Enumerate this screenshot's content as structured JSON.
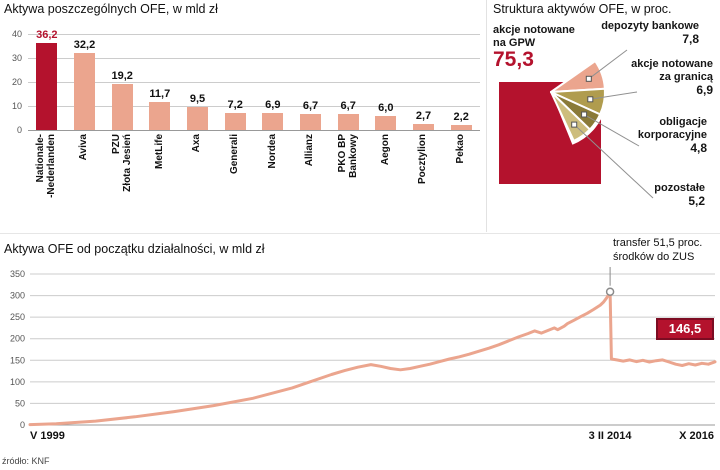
{
  "page": {
    "source": "źródło: KNF"
  },
  "colors": {
    "highlight": "#b4122d",
    "series": "#eba58e",
    "grid": "#cccccc",
    "axis": "#999999",
    "text": "#111111"
  },
  "chart_data": [
    {
      "type": "bar",
      "title": "Aktywa poszczególnych OFE, w mld zł",
      "categories": [
        "Nationale--Nederlanden",
        "Aviva",
        "PZU Złota Jesień",
        "MetLife",
        "Axa",
        "Generali",
        "Nordea",
        "Allianz",
        "PKO BP Bankowy",
        "Aegon",
        "Pocztylion",
        "Pekao"
      ],
      "category_lines": [
        [
          "Nationale-",
          "-Nederlanden"
        ],
        [
          "Aviva"
        ],
        [
          "PZU",
          "Złota Jesień"
        ],
        [
          "MetLife"
        ],
        [
          "Axa"
        ],
        [
          "Generali"
        ],
        [
          "Nordea"
        ],
        [
          "Allianz"
        ],
        [
          "PKO BP",
          "Bankowy"
        ],
        [
          "Aegon"
        ],
        [
          "Pocztylion"
        ],
        [
          "Pekao"
        ]
      ],
      "values": [
        36.2,
        32.2,
        19.2,
        11.7,
        9.5,
        7.2,
        6.9,
        6.7,
        6.7,
        6.0,
        2.7,
        2.2
      ],
      "value_labels": [
        "36,2",
        "32,2",
        "19,2",
        "11,7",
        "9,5",
        "7,2",
        "6,9",
        "6,7",
        "6,7",
        "6,0",
        "2,7",
        "2,2"
      ],
      "highlight_index": 0,
      "ylim": [
        0,
        40
      ],
      "yticks": [
        0,
        10,
        20,
        30,
        40
      ],
      "grid": true,
      "unit": "mld zł"
    },
    {
      "type": "pie",
      "title": "Struktura aktywów OFE, w proc.",
      "slices": [
        {
          "label_lines": [
            "akcje notowane",
            "na GPW"
          ],
          "value": 75.3,
          "value_label": "75,3",
          "color": "#b4122d"
        },
        {
          "label_lines": [
            "depozyty bankowe"
          ],
          "value": 7.8,
          "value_label": "7,8",
          "color": "#eba58e"
        },
        {
          "label_lines": [
            "akcje notowane",
            "za granicą"
          ],
          "value": 6.9,
          "value_label": "6,9",
          "color": "#b09c4e"
        },
        {
          "label_lines": [
            "obligacje",
            "korporacyjne"
          ],
          "value": 4.8,
          "value_label": "4,8",
          "color": "#8a7a38"
        },
        {
          "label_lines": [
            "pozostałe"
          ],
          "value": 5.2,
          "value_label": "5,2",
          "color": "#cdbd7d"
        }
      ]
    },
    {
      "type": "line",
      "title": "Aktywa OFE od początku działalności, w mld zł",
      "annotation": {
        "text_line1": "transfer 51,5 proc.",
        "text_line2": "środków do ZUS"
      },
      "end_value": 146.5,
      "end_value_label": "146,5",
      "x_axis_start_label": "V 1999",
      "x_axis_event_label": "3 II 2014",
      "x_axis_end_label": "X 2016",
      "ylim": [
        0,
        350
      ],
      "yticks": [
        0,
        50,
        100,
        150,
        200,
        250,
        300,
        350
      ],
      "x_total_months": 209,
      "event_month": 177,
      "peak_value": 309,
      "points": [
        [
          0,
          1
        ],
        [
          8,
          3
        ],
        [
          20,
          9
        ],
        [
          32,
          19
        ],
        [
          44,
          31
        ],
        [
          56,
          45
        ],
        [
          68,
          62
        ],
        [
          80,
          86
        ],
        [
          92,
          117
        ],
        [
          96,
          126
        ],
        [
          100,
          134
        ],
        [
          104,
          140
        ],
        [
          107,
          136
        ],
        [
          110,
          131
        ],
        [
          113,
          128
        ],
        [
          116,
          131
        ],
        [
          119,
          136
        ],
        [
          122,
          141
        ],
        [
          125,
          147
        ],
        [
          128,
          153
        ],
        [
          131,
          158
        ],
        [
          134,
          164
        ],
        [
          137,
          171
        ],
        [
          140,
          178
        ],
        [
          143,
          186
        ],
        [
          146,
          195
        ],
        [
          149,
          204
        ],
        [
          152,
          212
        ],
        [
          154,
          218
        ],
        [
          156,
          213
        ],
        [
          158,
          219
        ],
        [
          160,
          225
        ],
        [
          161,
          221
        ],
        [
          163,
          229
        ],
        [
          164,
          235
        ],
        [
          166,
          243
        ],
        [
          168,
          251
        ],
        [
          170,
          259
        ],
        [
          172,
          268
        ],
        [
          174,
          278
        ],
        [
          175,
          285
        ],
        [
          176,
          295
        ],
        [
          177,
          309
        ],
        [
          177.4,
          153
        ],
        [
          179,
          151
        ],
        [
          181,
          148
        ],
        [
          183,
          151
        ],
        [
          185,
          147
        ],
        [
          187,
          150
        ],
        [
          189,
          146
        ],
        [
          191,
          149
        ],
        [
          193,
          151
        ],
        [
          195,
          146
        ],
        [
          197,
          141
        ],
        [
          199,
          138
        ],
        [
          201,
          142
        ],
        [
          203,
          139
        ],
        [
          205,
          143
        ],
        [
          207,
          141
        ],
        [
          209,
          146.5
        ]
      ]
    }
  ]
}
